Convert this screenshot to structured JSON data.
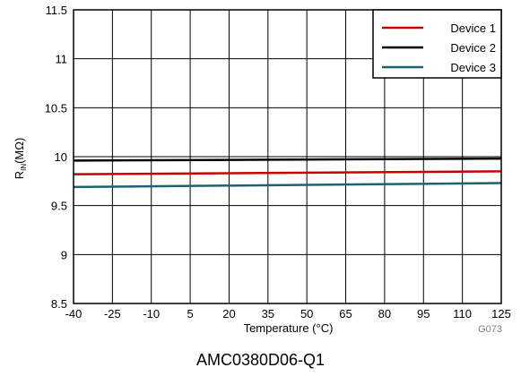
{
  "chart_data": {
    "type": "line",
    "xlabel": "Temperature (°C)",
    "ylabel": {
      "main": "R",
      "sub": "IN",
      "suffix": "(MΩ)"
    },
    "xlim": [
      -40,
      125
    ],
    "ylim": [
      8.5,
      11.5
    ],
    "x_ticks": [
      -40,
      -25,
      -10,
      5,
      20,
      35,
      50,
      65,
      80,
      95,
      110,
      125
    ],
    "y_ticks": [
      8.5,
      9,
      9.5,
      10,
      10.5,
      11,
      11.5
    ],
    "y_tick_labels": [
      "8.5",
      "9",
      "9.5",
      "10",
      "10.5",
      "11",
      "11.5"
    ],
    "grid": true,
    "legend_position": "top-right",
    "series": [
      {
        "name": "Device 1",
        "color": "#cc0000",
        "x": [
          -40,
          125
        ],
        "y": [
          9.82,
          9.85
        ]
      },
      {
        "name": "Device 2",
        "color": "#000000",
        "x": [
          -40,
          125
        ],
        "y": [
          9.96,
          9.98
        ]
      },
      {
        "name": "Device 3",
        "color": "#1a6470",
        "x": [
          -40,
          125
        ],
        "y": [
          9.69,
          9.73
        ]
      }
    ],
    "figure_code": "G073"
  },
  "caption": "AMC0380D06-Q1"
}
